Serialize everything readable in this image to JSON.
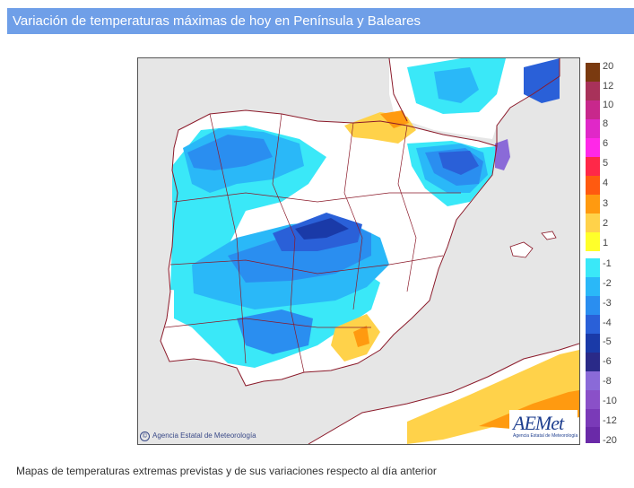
{
  "header": {
    "title": "Variación de temperaturas máximas de hoy en Península y Baleares"
  },
  "map": {
    "copyright": "Agencia Estatal de Meteorología",
    "logo_mark": "AEMet",
    "logo_sub": "Agencia Estatal de Meteorología",
    "colors": {
      "land": "#ffffff",
      "sea": "#e6e6e6",
      "border": "#8b1a2a"
    }
  },
  "legend": {
    "warm": [
      {
        "label": "20",
        "color": "#7a3a10"
      },
      {
        "label": "12",
        "color": "#a8325a"
      },
      {
        "label": "10",
        "color": "#c8288c"
      },
      {
        "label": "8",
        "color": "#e028c8"
      },
      {
        "label": "6",
        "color": "#ff28e8"
      },
      {
        "label": "5",
        "color": "#ff2848"
      },
      {
        "label": "4",
        "color": "#ff5a10"
      },
      {
        "label": "3",
        "color": "#ff9a10"
      },
      {
        "label": "2",
        "color": "#ffd24a"
      },
      {
        "label": "1",
        "color": "#ffff2a"
      }
    ],
    "cold": [
      {
        "label": "-1",
        "color": "#3ae8f8"
      },
      {
        "label": "-2",
        "color": "#2ab8f8"
      },
      {
        "label": "-3",
        "color": "#2a8ef0"
      },
      {
        "label": "-4",
        "color": "#2a60d8"
      },
      {
        "label": "-5",
        "color": "#1a3aa8"
      },
      {
        "label": "-6",
        "color": "#2a2a88"
      },
      {
        "label": "-8",
        "color": "#8a6ad8"
      },
      {
        "label": "-10",
        "color": "#8a50c8"
      },
      {
        "label": "-12",
        "color": "#7a3ab8"
      },
      {
        "label": "-20",
        "color": "#6a2aa8"
      }
    ]
  },
  "caption": "Mapas de temperaturas extremas previstas y de sus variaciones respecto al día anterior"
}
